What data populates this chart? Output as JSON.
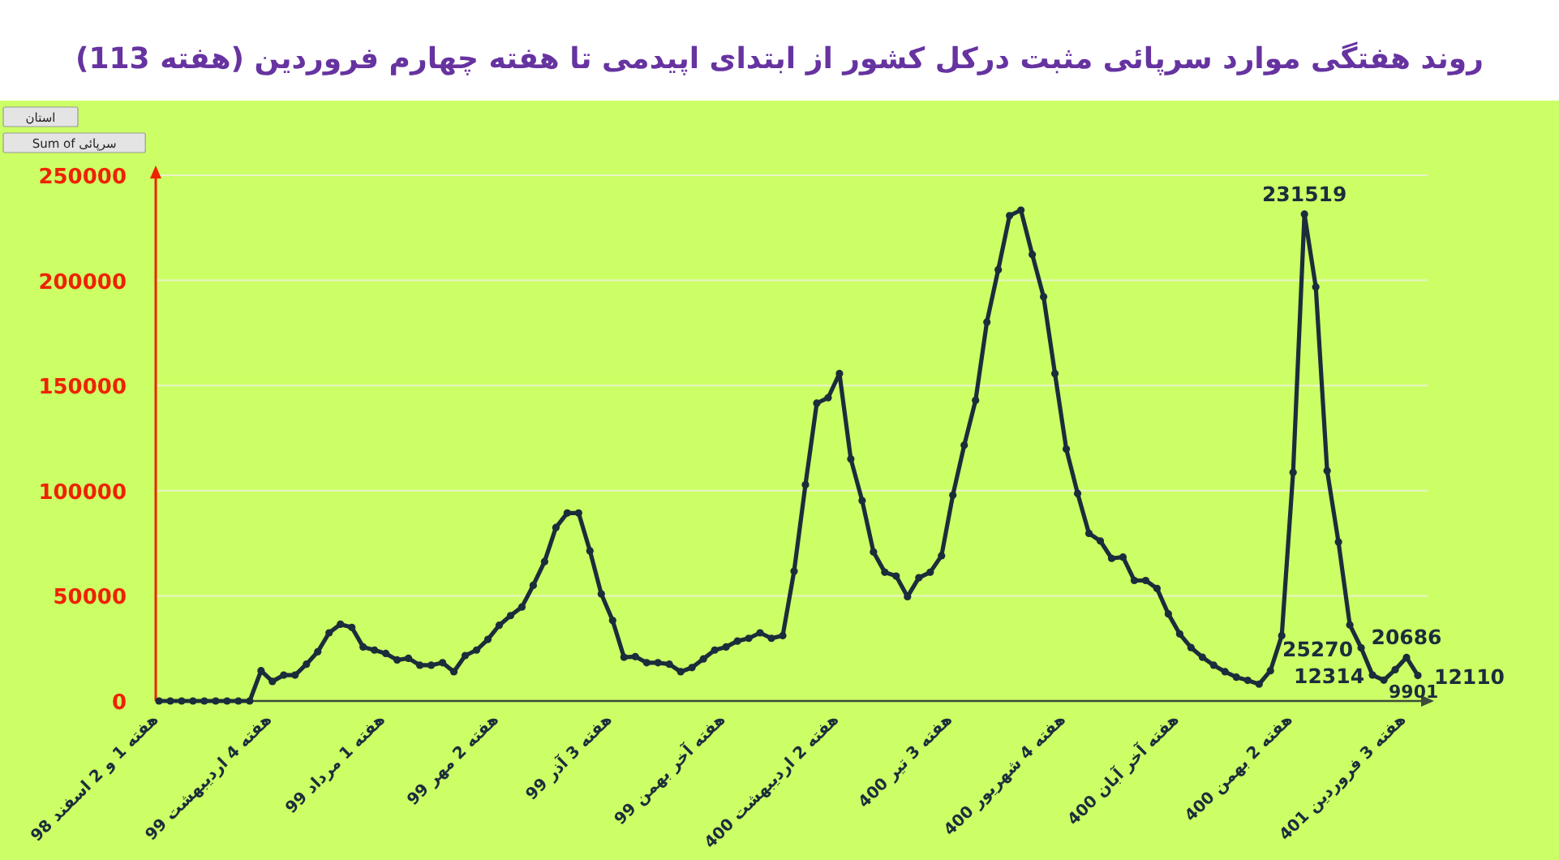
{
  "chart_data": {
    "type": "line",
    "title": "روند هفتگی موارد سرپائی مثبت درکل کشور از ابتدای اپیدمی تا هفته چهارم فروردین (هفته 113)",
    "categories": [
      "هفته 1 و 2 اسفند 98",
      null,
      null,
      null,
      null,
      null,
      null,
      null,
      null,
      null,
      "هفته 4 اردیبهشت 99",
      null,
      null,
      null,
      null,
      null,
      null,
      null,
      null,
      null,
      "هفته 1 مرداد 99",
      null,
      null,
      null,
      null,
      null,
      null,
      null,
      null,
      null,
      "هفته 2 مهر 99",
      null,
      null,
      null,
      null,
      null,
      null,
      null,
      null,
      null,
      "هفته 3 آذر 99",
      null,
      null,
      null,
      null,
      null,
      null,
      null,
      null,
      null,
      "هفته آخر بهمن 99",
      null,
      null,
      null,
      null,
      null,
      null,
      null,
      null,
      null,
      "هفته 2 اردیبهشت 400",
      null,
      null,
      null,
      null,
      null,
      null,
      null,
      null,
      null,
      "هفته 3 تیر 400",
      null,
      null,
      null,
      null,
      null,
      null,
      null,
      null,
      null,
      "هفته 4 شهریور 400",
      null,
      null,
      null,
      null,
      null,
      null,
      null,
      null,
      null,
      "هفته آخر آبان 400",
      null,
      null,
      null,
      null,
      null,
      null,
      null,
      null,
      null,
      "هفته 2 بهمن 400",
      null,
      null,
      null,
      null,
      null,
      null,
      null,
      null,
      null,
      "هفته 3 فروردین 401",
      null
    ],
    "series": [
      {
        "color": "#1b2d3b",
        "values": [
          0,
          0,
          0,
          0,
          0,
          0,
          0,
          0,
          0,
          14400,
          9300,
          12300,
          12300,
          17500,
          23400,
          32400,
          36500,
          35000,
          25700,
          24200,
          22600,
          19500,
          20300,
          17000,
          17000,
          18200,
          13900,
          21600,
          24200,
          29300,
          36000,
          40600,
          44700,
          55000,
          66300,
          82500,
          89400,
          89400,
          71400,
          50900,
          38300,
          20800,
          21100,
          18200,
          18200,
          17500,
          13900,
          15900,
          20000,
          24200,
          25700,
          28500,
          29800,
          32400,
          29800,
          31100,
          61700,
          102800,
          141600,
          144200,
          155700,
          115100,
          95300,
          70900,
          61200,
          59400,
          49600,
          58600,
          61200,
          69100,
          97900,
          121600,
          142900,
          180200,
          205100,
          230800,
          233400,
          212300,
          192200,
          155700,
          119800,
          98700,
          79700,
          76100,
          67800,
          68400,
          57300,
          57300,
          53500,
          41400,
          31900,
          25400,
          20800,
          17000,
          13900,
          11300,
          9800,
          8000,
          14400,
          31100,
          108700,
          231519,
          196900,
          109500,
          75600,
          36200,
          25270,
          12314,
          9901,
          14900,
          20686,
          12110
        ],
        "value_labels": [
          null,
          null,
          null,
          null,
          null,
          null,
          null,
          null,
          null,
          null,
          null,
          null,
          null,
          null,
          null,
          null,
          null,
          null,
          null,
          null,
          null,
          null,
          null,
          null,
          null,
          null,
          null,
          null,
          null,
          null,
          null,
          null,
          null,
          null,
          null,
          null,
          null,
          null,
          null,
          null,
          null,
          null,
          null,
          null,
          null,
          null,
          null,
          null,
          null,
          null,
          null,
          null,
          null,
          null,
          null,
          null,
          null,
          null,
          null,
          null,
          null,
          null,
          null,
          null,
          null,
          null,
          null,
          null,
          null,
          null,
          null,
          null,
          null,
          null,
          null,
          null,
          null,
          null,
          null,
          null,
          null,
          null,
          null,
          null,
          null,
          null,
          null,
          null,
          null,
          null,
          null,
          null,
          null,
          null,
          null,
          null,
          null,
          null,
          null,
          null,
          null,
          "231519",
          null,
          null,
          null,
          null,
          "25270",
          "12314",
          "9901",
          null,
          "20686",
          "12110"
        ]
      }
    ],
    "ylim": [
      0,
      250000
    ],
    "yticks": [
      0,
      50000,
      100000,
      150000,
      200000,
      250000
    ],
    "grid": "y",
    "marker": "circle",
    "line_style": "solid",
    "annotations": [
      "استان",
      "Sum of سرپائی"
    ]
  }
}
